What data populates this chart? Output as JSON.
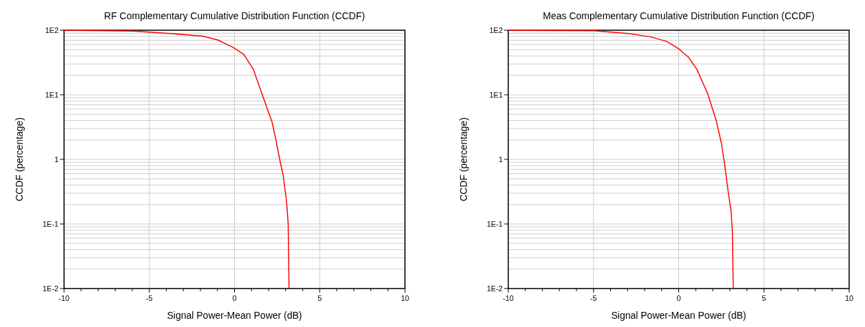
{
  "chart_data": [
    {
      "type": "line",
      "title": "RF Complementary Cumulative Distribution Function (CCDF)",
      "xlabel": "Signal Power-Mean Power (dB)",
      "ylabel": "CCDF (percentage)",
      "log": "y",
      "grid": true,
      "marker": "none",
      "line_style": "solid",
      "xlim": [
        -10,
        10
      ],
      "xticks": [
        -10,
        -5,
        0,
        5,
        10
      ],
      "ylim": [
        0.01,
        100
      ],
      "yticks": [
        {
          "value": 0.01,
          "label": "1E-2"
        },
        {
          "value": 0.1,
          "label": "1E-1"
        },
        1,
        {
          "value": 10,
          "label": "1E1"
        },
        {
          "value": 100,
          "label": "1E2"
        }
      ],
      "series": [
        {
          "color": "#ff0000",
          "x": [
            -10,
            -5.9,
            -3.8,
            -1.9,
            -1.0,
            -0.07,
            0.55,
            1.1,
            1.7,
            2.2,
            2.4,
            2.65,
            2.85,
            3.05,
            3.15,
            3.2
          ],
          "values": [
            100,
            97,
            89,
            81,
            71,
            54,
            42,
            25,
            8.9,
            3.8,
            2.2,
            1.0,
            0.58,
            0.23,
            0.1,
            0.01
          ]
        }
      ]
    },
    {
      "type": "line",
      "title": "Meas Complementary Cumulative Distribution Function (CCDF)",
      "xlabel": "Signal Power-Mean Power (dB)",
      "ylabel": "CCDF (percentage)",
      "log": "y",
      "grid": true,
      "marker": "none",
      "line_style": "solid",
      "xlim": [
        -10,
        10
      ],
      "xticks": [
        -10,
        -5,
        0,
        5,
        10
      ],
      "ylim": [
        0.01,
        100
      ],
      "yticks": [
        {
          "value": 0.01,
          "label": "1E-2"
        },
        {
          "value": 0.1,
          "label": "1E-1"
        },
        1,
        {
          "value": 10,
          "label": "1E1"
        },
        {
          "value": 100,
          "label": "1E2"
        }
      ],
      "series": [
        {
          "color": "#ff0000",
          "x": [
            -10,
            -4.95,
            -2.95,
            -1.65,
            -0.7,
            0.02,
            0.58,
            1.06,
            1.7,
            2.2,
            2.5,
            2.67,
            2.9,
            3.07,
            3.15,
            3.2
          ],
          "values": [
            100,
            98,
            89,
            79,
            67,
            51,
            38,
            25,
            10.4,
            4.0,
            1.8,
            0.93,
            0.32,
            0.16,
            0.076,
            0.01
          ]
        }
      ]
    }
  ]
}
